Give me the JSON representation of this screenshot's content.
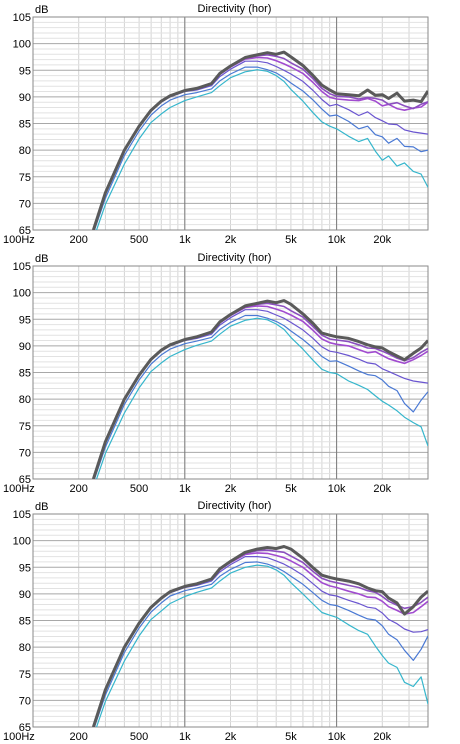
{
  "chart_data": [
    {
      "type": "line",
      "title": "Directivity (hor)",
      "ylabel": "dB",
      "xscale": "log",
      "xlim": [
        100,
        40000
      ],
      "ylim": [
        65,
        105
      ],
      "x_ticks": [
        100,
        200,
        500,
        1000,
        2000,
        5000,
        10000,
        20000
      ],
      "x_tick_labels": [
        "100Hz",
        "200",
        "500",
        "1k",
        "2k",
        "5k",
        "10k",
        "20k"
      ],
      "y_ticks": [
        65,
        70,
        75,
        80,
        85,
        90,
        95,
        100,
        105
      ],
      "grid": true,
      "x": [
        250,
        300,
        400,
        500,
        600,
        700,
        800,
        1000,
        1200,
        1500,
        1700,
        2000,
        2500,
        3000,
        3500,
        4000,
        4500,
        5000,
        6000,
        7000,
        8000,
        9000,
        10000,
        12000,
        14000,
        16000,
        18000,
        20000,
        22000,
        25000,
        28000,
        32000,
        36000,
        40000
      ],
      "series": [
        {
          "color": "#5a5a5a",
          "values": [
            65,
            72,
            80,
            84.5,
            87.5,
            89.2,
            90.2,
            91.2,
            91.6,
            92.5,
            94.4,
            95.8,
            97.4,
            97.9,
            98.3,
            98.0,
            98.4,
            97.5,
            95.9,
            94.0,
            92.2,
            91.3,
            90.6,
            90.4,
            90.2,
            91.3,
            90.3,
            90.4,
            89.7,
            90.7,
            89.2,
            89.4,
            89.1,
            91.1
          ]
        },
        {
          "color": "#8b4fbf",
          "values": [
            65,
            72,
            80,
            84.5,
            87.5,
            89.2,
            90.2,
            91.2,
            91.6,
            92.5,
            94.4,
            95.8,
            97.3,
            97.7,
            97.9,
            97.6,
            97.2,
            96.4,
            95.2,
            93.4,
            91.6,
            90.6,
            90.1,
            90.0,
            89.6,
            89.9,
            89.7,
            89.4,
            88.6,
            88.9,
            88.3,
            87.8,
            88.6,
            89.1
          ]
        },
        {
          "color": "#a14bd0",
          "values": [
            65,
            72,
            80,
            84.5,
            87.5,
            89.2,
            90.2,
            91.2,
            91.6,
            92.4,
            94.2,
            95.6,
            97.1,
            97.4,
            97.3,
            96.8,
            96.2,
            95.6,
            94.4,
            92.7,
            91.0,
            89.9,
            89.6,
            89.4,
            89.3,
            89.7,
            89.2,
            88.3,
            88.6,
            87.8,
            87.5,
            87.9,
            88.1,
            89.0
          ]
        },
        {
          "color": "#6a55d0",
          "values": [
            64.8,
            71.8,
            79.8,
            84.3,
            87.3,
            89.0,
            90.0,
            91.0,
            91.3,
            92.1,
            93.8,
            95.2,
            96.7,
            96.7,
            96.4,
            95.7,
            95.0,
            94.3,
            92.9,
            91.2,
            89.5,
            88.3,
            88.6,
            87.6,
            86.5,
            87.2,
            86.1,
            85.5,
            84.9,
            84.8,
            83.8,
            83.4,
            83.2,
            83.0
          ]
        },
        {
          "color": "#4a79d4",
          "values": [
            64.4,
            71.0,
            79.0,
            83.6,
            86.6,
            88.3,
            89.4,
            90.4,
            90.8,
            91.5,
            93.0,
            94.3,
            95.6,
            95.6,
            95.1,
            94.5,
            93.6,
            92.6,
            91.1,
            89.4,
            87.7,
            86.4,
            86.6,
            85.4,
            84.0,
            84.5,
            82.9,
            82.5,
            81.3,
            82.2,
            80.7,
            80.6,
            79.7,
            80.0
          ]
        },
        {
          "color": "#35b6cc",
          "values": [
            63.3,
            69.8,
            77.4,
            82.1,
            85.2,
            86.8,
            88.0,
            89.3,
            90.0,
            90.8,
            92.1,
            93.6,
            94.7,
            95.1,
            94.8,
            94.0,
            92.9,
            91.4,
            89.2,
            87.0,
            85.3,
            84.5,
            84.0,
            82.6,
            81.6,
            82.2,
            79.8,
            78.1,
            78.9,
            77.0,
            77.6,
            76.0,
            75.5,
            73.0
          ]
        }
      ]
    },
    {
      "type": "line",
      "title": "Directivity (hor)",
      "ylabel": "dB",
      "xscale": "log",
      "xlim": [
        100,
        40000
      ],
      "ylim": [
        65,
        105
      ],
      "x_ticks": [
        100,
        200,
        500,
        1000,
        2000,
        5000,
        10000,
        20000
      ],
      "x_tick_labels": [
        "100Hz",
        "200",
        "500",
        "1k",
        "2k",
        "5k",
        "10k",
        "20k"
      ],
      "y_ticks": [
        65,
        70,
        75,
        80,
        85,
        90,
        95,
        100,
        105
      ],
      "grid": true,
      "x": [
        250,
        300,
        400,
        500,
        600,
        700,
        800,
        1000,
        1200,
        1500,
        1700,
        2000,
        2500,
        3000,
        3500,
        4000,
        4500,
        5000,
        6000,
        7000,
        8000,
        9000,
        10000,
        12000,
        14000,
        16000,
        18000,
        20000,
        22000,
        25000,
        28000,
        32000,
        36000,
        40000
      ],
      "series": [
        {
          "color": "#5a5a5a",
          "values": [
            65,
            72,
            80,
            84.5,
            87.5,
            89.2,
            90.2,
            91.2,
            91.7,
            92.6,
            94.5,
            95.9,
            97.5,
            98.0,
            98.4,
            98.1,
            98.5,
            97.8,
            96.0,
            94.2,
            92.4,
            92.0,
            91.7,
            91.4,
            90.8,
            90.2,
            89.8,
            89.6,
            88.9,
            88.1,
            87.4,
            88.6,
            89.6,
            91.0
          ]
        },
        {
          "color": "#8b4fbf",
          "values": [
            65,
            72,
            80,
            84.5,
            87.5,
            89.2,
            90.2,
            91.2,
            91.7,
            92.6,
            94.5,
            95.9,
            97.4,
            97.8,
            98.0,
            97.7,
            97.4,
            96.6,
            95.4,
            93.6,
            92.0,
            91.3,
            91.1,
            90.8,
            90.2,
            89.6,
            89.5,
            89.0,
            88.5,
            87.7,
            87.2,
            87.8,
            88.8,
            89.5
          ]
        },
        {
          "color": "#a14bd0",
          "values": [
            65,
            72,
            80,
            84.5,
            87.5,
            89.2,
            90.2,
            91.2,
            91.7,
            92.5,
            94.3,
            95.7,
            97.2,
            97.5,
            97.4,
            96.9,
            96.4,
            95.8,
            94.6,
            92.9,
            91.3,
            90.6,
            90.3,
            90.0,
            89.3,
            88.7,
            88.9,
            88.2,
            87.6,
            87.1,
            86.7,
            87.4,
            88.2,
            89.0
          ]
        },
        {
          "color": "#6a55d0",
          "values": [
            64.8,
            71.8,
            79.8,
            84.3,
            87.3,
            89.0,
            90.0,
            91.0,
            91.4,
            92.2,
            93.9,
            95.3,
            96.8,
            96.8,
            96.5,
            95.8,
            95.2,
            94.4,
            93.0,
            91.4,
            89.8,
            89.0,
            88.8,
            88.2,
            87.5,
            86.8,
            86.6,
            85.7,
            85.2,
            84.5,
            83.9,
            83.4,
            83.2,
            83.0
          ]
        },
        {
          "color": "#4a79d4",
          "values": [
            64.4,
            71.0,
            79.0,
            83.6,
            86.6,
            88.3,
            89.4,
            90.4,
            90.9,
            91.6,
            93.1,
            94.4,
            95.7,
            95.7,
            95.2,
            94.6,
            93.8,
            92.8,
            91.2,
            89.6,
            88.0,
            87.1,
            87.2,
            86.2,
            85.3,
            84.6,
            84.4,
            83.6,
            82.4,
            81.6,
            79.2,
            77.6,
            79.8,
            81.4
          ]
        },
        {
          "color": "#35b6cc",
          "values": [
            63.3,
            69.8,
            77.4,
            82.1,
            85.2,
            86.8,
            88.0,
            89.3,
            90.1,
            90.9,
            92.2,
            93.7,
            94.8,
            95.2,
            94.9,
            94.1,
            93.1,
            91.6,
            89.4,
            87.3,
            85.6,
            85.0,
            84.8,
            83.4,
            82.6,
            81.8,
            80.6,
            79.6,
            78.9,
            77.8,
            76.6,
            75.6,
            74.8,
            71.2
          ]
        }
      ]
    },
    {
      "type": "line",
      "title": "Directivity (hor)",
      "ylabel": "dB",
      "xscale": "log",
      "xlim": [
        100,
        40000
      ],
      "ylim": [
        65,
        105
      ],
      "x_ticks": [
        100,
        200,
        500,
        1000,
        2000,
        5000,
        10000,
        20000
      ],
      "x_tick_labels": [
        "100Hz",
        "200",
        "500",
        "1k",
        "2k",
        "5k",
        "10k",
        "20k"
      ],
      "y_ticks": [
        65,
        70,
        75,
        80,
        85,
        90,
        95,
        100,
        105
      ],
      "grid": true,
      "x": [
        250,
        300,
        400,
        500,
        600,
        700,
        800,
        1000,
        1200,
        1500,
        1700,
        2000,
        2500,
        3000,
        3500,
        4000,
        4500,
        5000,
        6000,
        7000,
        8000,
        9000,
        10000,
        12000,
        14000,
        16000,
        18000,
        20000,
        22000,
        25000,
        28000,
        32000,
        36000,
        40000
      ],
      "series": [
        {
          "color": "#5a5a5a",
          "values": [
            65,
            72,
            80,
            84.5,
            87.5,
            89.2,
            90.4,
            91.4,
            91.9,
            92.8,
            94.7,
            96.1,
            97.8,
            98.4,
            98.7,
            98.5,
            98.9,
            98.4,
            96.7,
            94.9,
            93.5,
            93.1,
            92.8,
            92.4,
            91.9,
            91.1,
            90.6,
            90.4,
            89.2,
            88.3,
            86.2,
            87.6,
            89.4,
            90.5
          ]
        },
        {
          "color": "#8b4fbf",
          "values": [
            65,
            72,
            80,
            84.5,
            87.5,
            89.2,
            90.4,
            91.4,
            91.9,
            92.8,
            94.7,
            96.1,
            97.6,
            98.1,
            98.2,
            98.0,
            97.8,
            97.1,
            95.9,
            94.2,
            92.9,
            92.4,
            92.1,
            91.6,
            91.2,
            90.6,
            90.3,
            89.5,
            88.6,
            87.9,
            87.3,
            87.6,
            88.4,
            89.4
          ]
        },
        {
          "color": "#a14bd0",
          "values": [
            65,
            72,
            80,
            84.5,
            87.5,
            89.2,
            90.4,
            91.4,
            91.9,
            92.7,
            94.5,
            95.9,
            97.4,
            97.7,
            97.6,
            97.2,
            96.8,
            96.2,
            95.0,
            93.4,
            92.1,
            91.5,
            91.2,
            90.5,
            90.0,
            89.4,
            89.3,
            88.6,
            87.6,
            86.9,
            86.2,
            86.5,
            87.6,
            88.6
          ]
        },
        {
          "color": "#6a55d0",
          "values": [
            64.8,
            71.8,
            79.8,
            84.3,
            87.3,
            89.0,
            90.2,
            91.2,
            91.6,
            92.4,
            94.1,
            95.5,
            97.0,
            97.0,
            96.8,
            96.2,
            95.6,
            94.9,
            93.5,
            91.9,
            90.5,
            89.8,
            89.6,
            88.8,
            88.2,
            87.5,
            87.3,
            86.4,
            85.2,
            84.4,
            83.4,
            82.8,
            82.9,
            83.3
          ]
        },
        {
          "color": "#4a79d4",
          "values": [
            64.4,
            71.0,
            79.0,
            83.6,
            86.6,
            88.3,
            89.6,
            90.6,
            91.1,
            91.8,
            93.3,
            94.6,
            95.9,
            96.0,
            95.6,
            95.0,
            94.2,
            93.3,
            91.8,
            90.2,
            88.8,
            88.0,
            87.8,
            86.9,
            86.0,
            85.3,
            85.1,
            84.0,
            82.4,
            81.4,
            79.4,
            77.5,
            79.6,
            82.1
          ]
        },
        {
          "color": "#35b6cc",
          "values": [
            63.3,
            69.8,
            77.4,
            82.1,
            85.2,
            86.8,
            88.2,
            89.5,
            90.3,
            91.1,
            92.4,
            93.9,
            95.0,
            95.4,
            95.2,
            94.5,
            93.5,
            92.1,
            90.0,
            88.1,
            86.5,
            86.0,
            85.6,
            84.2,
            83.1,
            82.4,
            80.2,
            78.4,
            77.0,
            76.2,
            73.4,
            72.6,
            74.4,
            69.3
          ]
        }
      ]
    }
  ]
}
